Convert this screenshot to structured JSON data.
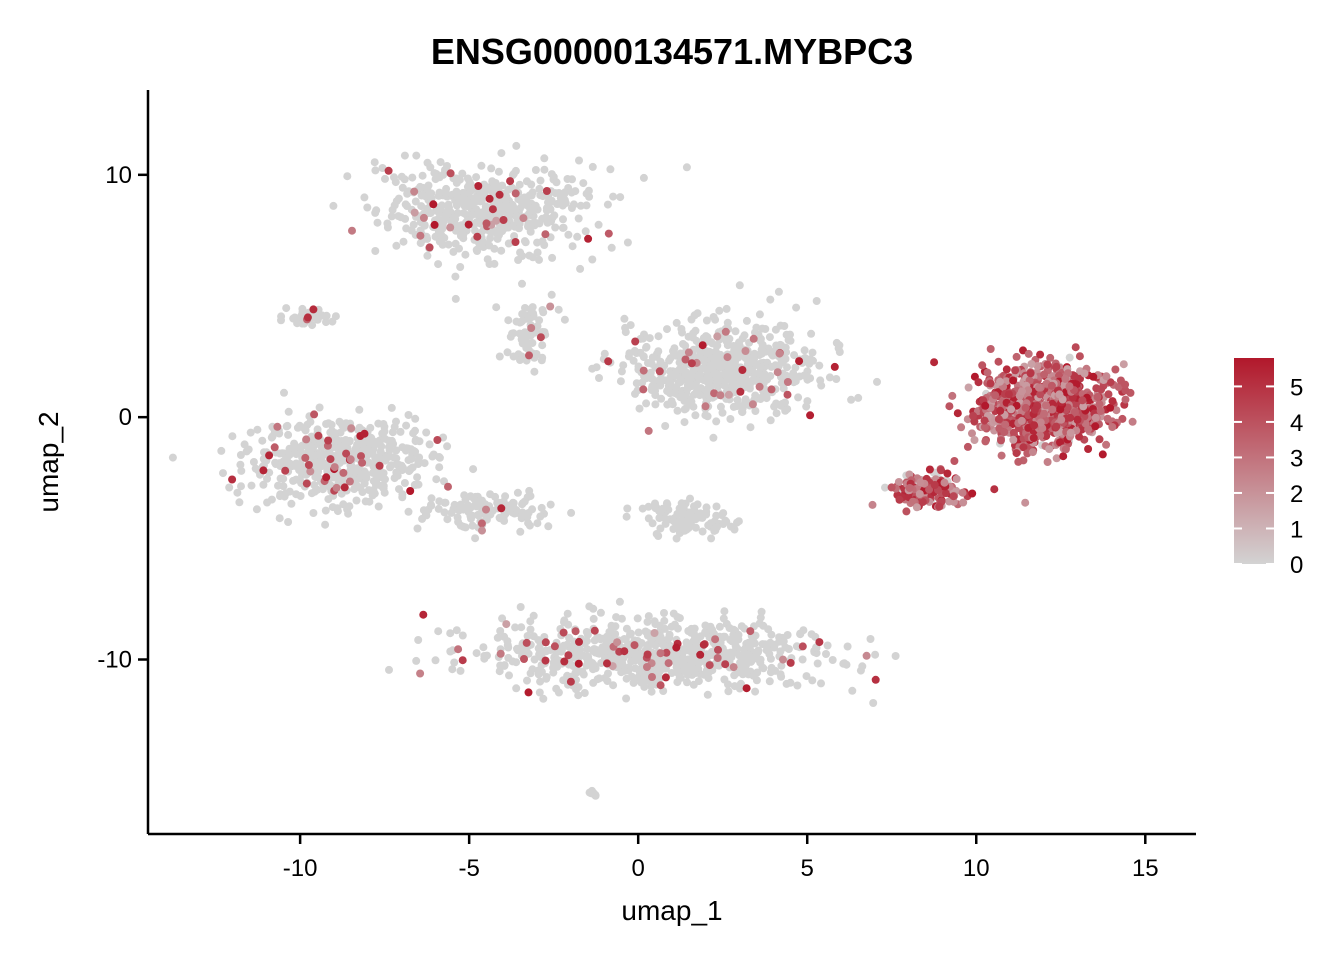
{
  "chart_data": {
    "type": "scatter",
    "title": "ENSG00000134571.MYBPC3",
    "xlabel": "umap_1",
    "ylabel": "umap_2",
    "xlim": [
      -14.5,
      16.5
    ],
    "ylim": [
      -17.2,
      13.5
    ],
    "xticks": [
      -10,
      -5,
      0,
      5,
      10,
      15
    ],
    "yticks": [
      -10,
      0,
      10
    ],
    "xtick_labels": [
      "-10",
      "-5",
      "0",
      "5",
      "10",
      "15"
    ],
    "ytick_labels": [
      "-10",
      "0",
      "10"
    ],
    "grid": false,
    "legend_position": "right",
    "color_scale": {
      "low_color": "#d3d3d3",
      "high_color": "#b2182b",
      "min": 0,
      "max": 5.8,
      "ticks": [
        0,
        1,
        2,
        3,
        4,
        5
      ],
      "tick_labels": [
        "0",
        "1",
        "2",
        "3",
        "4",
        "5"
      ]
    },
    "clusters": [
      {
        "name": "top-left",
        "center": [
          -4.5,
          8.5
        ],
        "spread": [
          2.6,
          1.5
        ],
        "n": 520,
        "expr_rate": 0.06
      },
      {
        "name": "top-left-tail",
        "center": [
          -3.2,
          3.5
        ],
        "spread": [
          0.6,
          1.4
        ],
        "n": 70,
        "expr_rate": 0.04
      },
      {
        "name": "small-left",
        "center": [
          -9.8,
          4.1
        ],
        "spread": [
          0.7,
          0.3
        ],
        "n": 40,
        "expr_rate": 0.08
      },
      {
        "name": "left-large",
        "center": [
          -8.8,
          -1.8
        ],
        "spread": [
          2.2,
          1.4
        ],
        "n": 560,
        "expr_rate": 0.06
      },
      {
        "name": "left-arm",
        "center": [
          -4.5,
          -3.8
        ],
        "spread": [
          1.6,
          0.6
        ],
        "n": 120,
        "expr_rate": 0.05
      },
      {
        "name": "center",
        "center": [
          2.5,
          2.0
        ],
        "spread": [
          2.3,
          1.6
        ],
        "n": 620,
        "expr_rate": 0.05
      },
      {
        "name": "center-small",
        "center": [
          1.5,
          -4.2
        ],
        "spread": [
          1.0,
          0.6
        ],
        "n": 110,
        "expr_rate": 0.0
      },
      {
        "name": "bottom",
        "center": [
          0.5,
          -9.8
        ],
        "spread": [
          4.2,
          1.1
        ],
        "n": 760,
        "expr_rate": 0.07
      },
      {
        "name": "bottom-dot",
        "center": [
          -1.3,
          -15.5
        ],
        "spread": [
          0.1,
          0.1
        ],
        "n": 8,
        "expr_rate": 0.0
      },
      {
        "name": "right-main",
        "center": [
          12.0,
          0.5
        ],
        "spread": [
          1.6,
          1.4
        ],
        "n": 900,
        "expr_rate": 0.97
      },
      {
        "name": "right-lower",
        "center": [
          8.6,
          -3.0
        ],
        "spread": [
          0.9,
          0.6
        ],
        "n": 160,
        "expr_rate": 0.85
      }
    ]
  }
}
